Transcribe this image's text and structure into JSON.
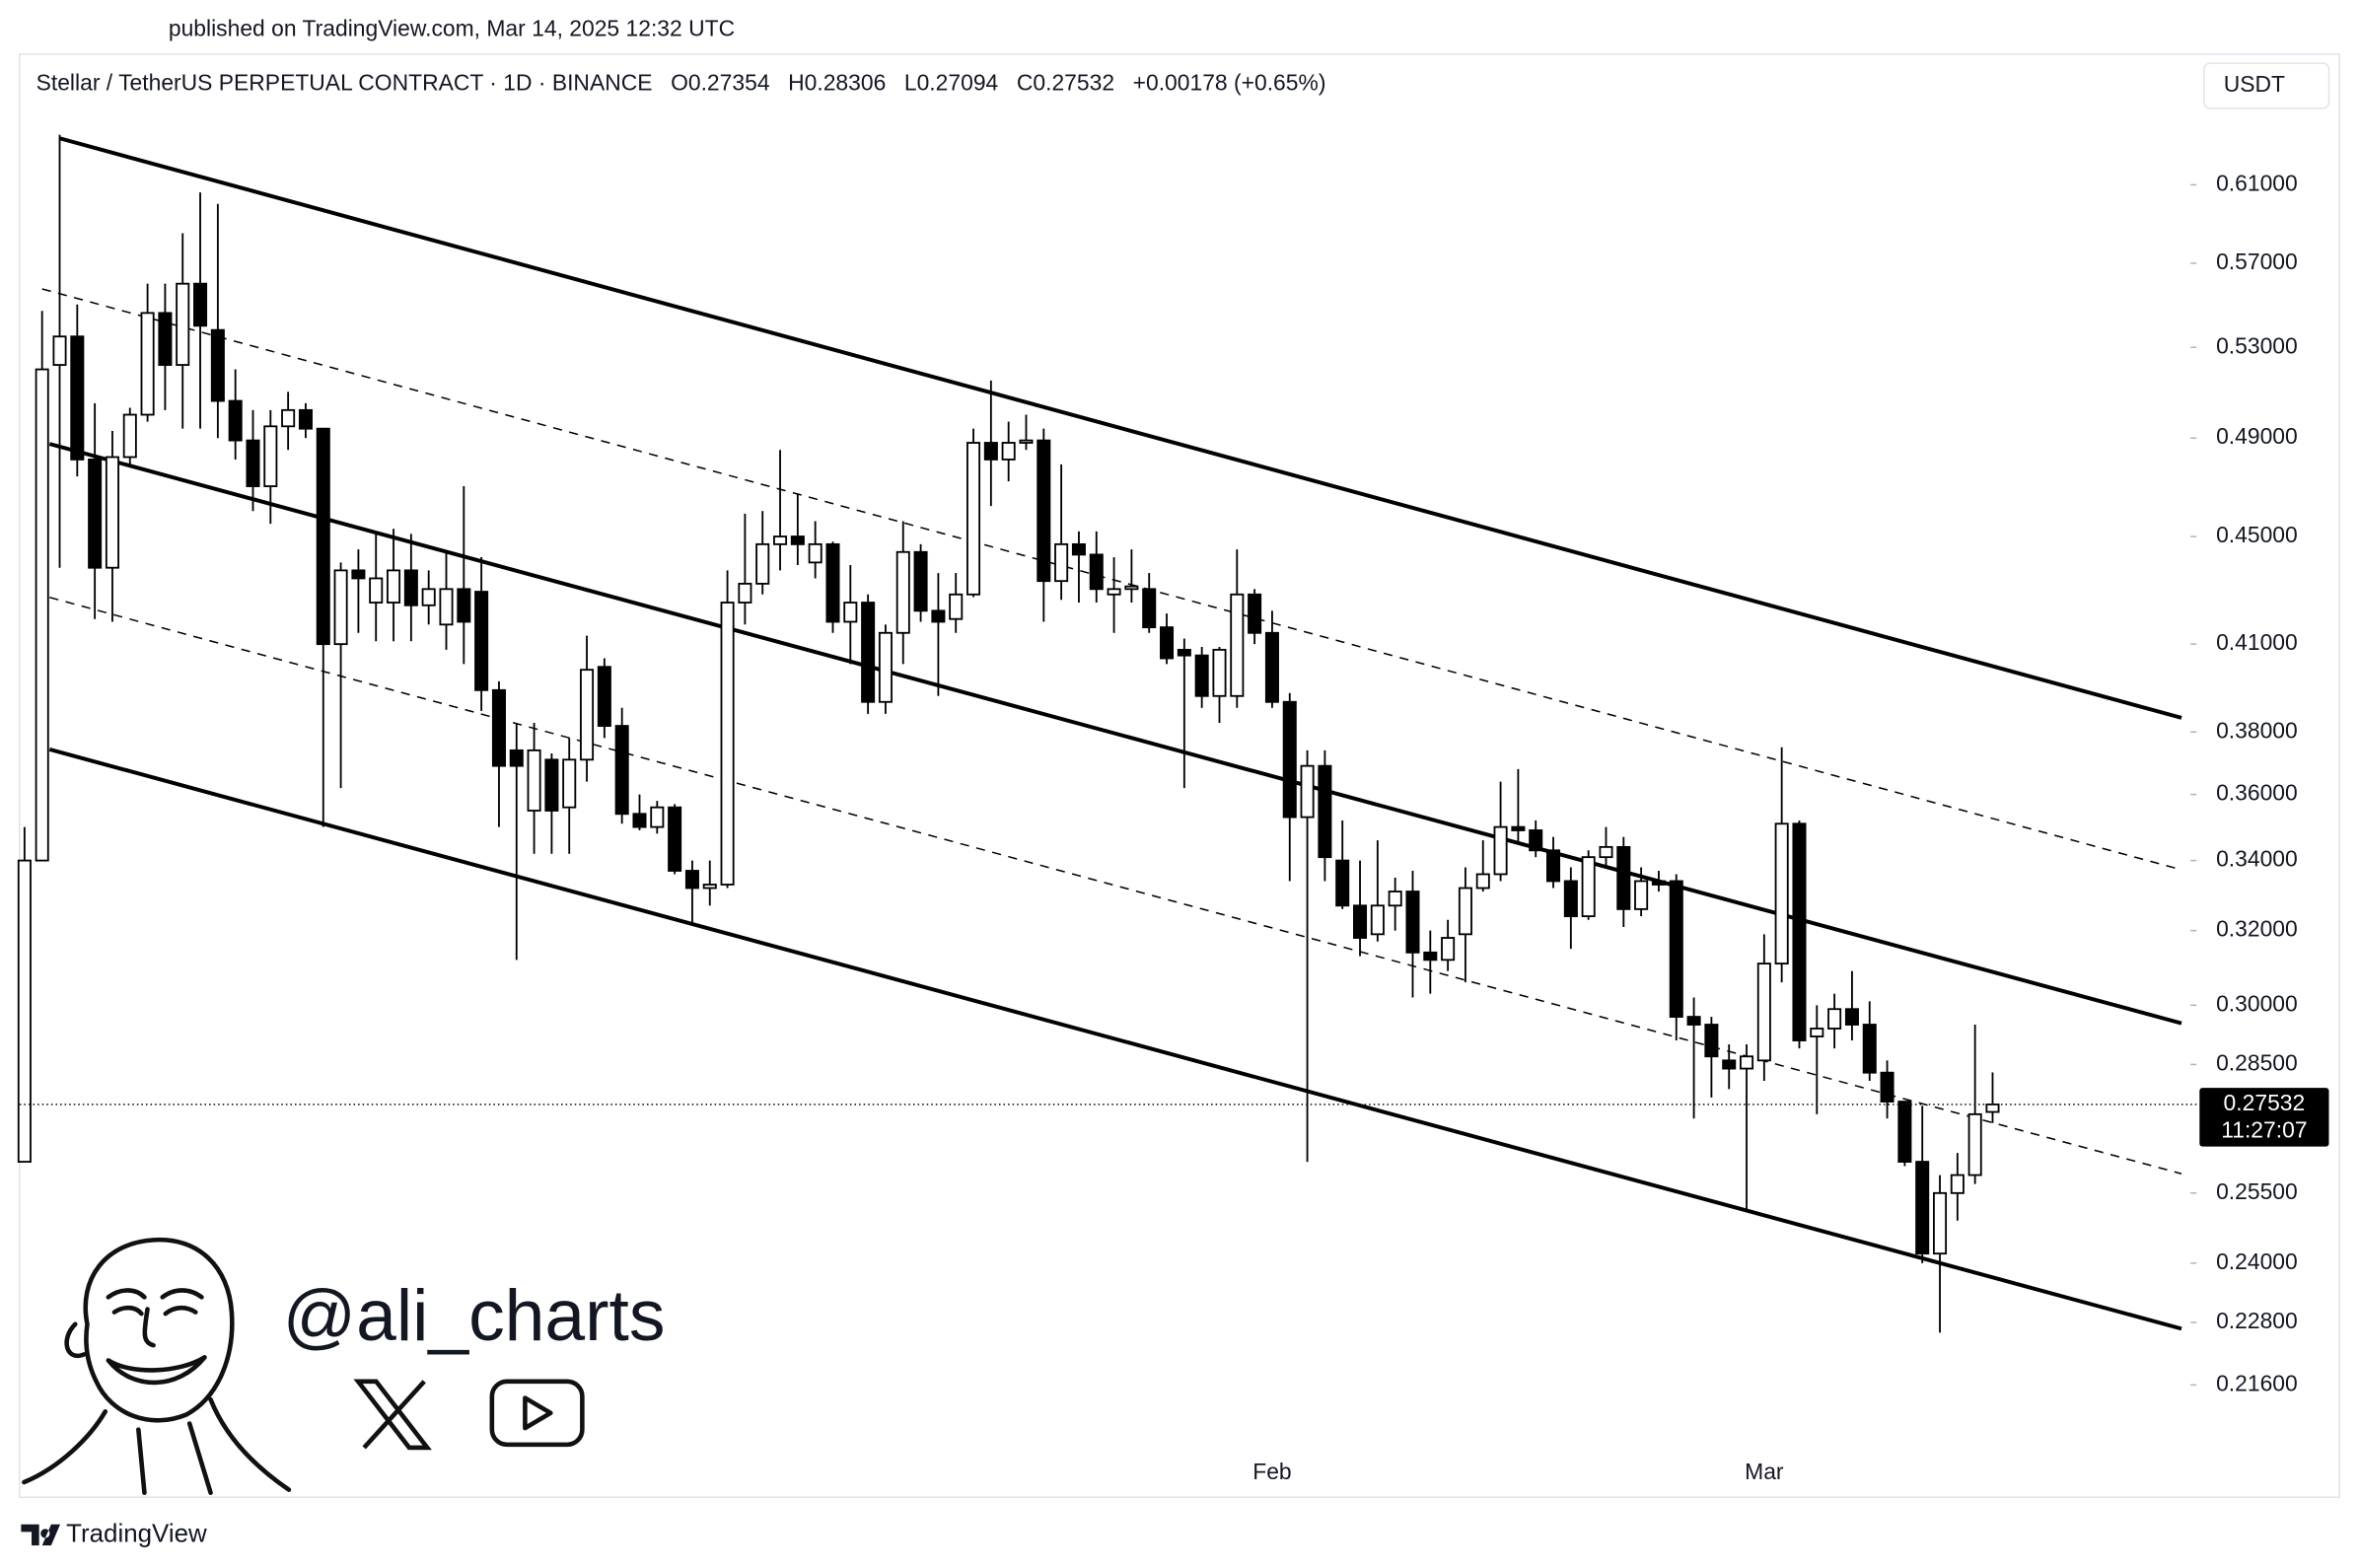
{
  "published": "published on TradingView.com, Mar 14, 2025 12:32 UTC",
  "brand": "TradingView",
  "watermark": "@ali_charts",
  "chart_data": {
    "type": "candlestick",
    "symbol": "Stellar / TetherUS PERPETUAL CONTRACT · 1D · BINANCE",
    "ohlc_text": [
      "O0.27354",
      "H0.28306",
      "L0.27094",
      "C0.27532",
      "+0.00178 (+0.65%)"
    ],
    "currency": "USDT",
    "countdown": "11:27:07",
    "log_scale": true,
    "grid": false,
    "up_color": "#ffffff",
    "down_color": "#000000",
    "outline_color": "#000000",
    "categories": [
      null,
      null,
      null,
      null,
      null,
      null,
      null,
      null,
      null,
      null,
      null,
      null,
      null,
      null,
      null,
      null,
      null,
      null,
      null,
      null,
      null,
      null,
      null,
      null,
      null,
      null,
      null,
      null,
      null,
      null,
      null,
      null,
      null,
      null,
      null,
      null,
      null,
      null,
      null,
      null,
      null,
      null,
      null,
      null,
      null,
      null,
      null,
      null,
      null,
      null,
      null,
      null,
      null,
      null,
      null,
      null,
      null,
      null,
      null,
      null,
      null,
      null,
      null,
      null,
      null,
      null,
      null,
      null,
      null,
      null,
      null,
      "Feb",
      null,
      null,
      null,
      null,
      null,
      null,
      null,
      null,
      null,
      null,
      null,
      null,
      null,
      null,
      null,
      null,
      null,
      null,
      null,
      null,
      null,
      null,
      null,
      null,
      null,
      null,
      null,
      "Mar",
      null,
      null,
      null,
      null,
      null,
      null,
      null,
      null,
      null,
      null,
      null,
      null,
      null
    ],
    "open": [
      0.262,
      0.34,
      0.522,
      0.535,
      0.481,
      0.438,
      0.482,
      0.5,
      0.546,
      0.522,
      0.56,
      0.538,
      0.506,
      0.489,
      0.47,
      0.495,
      0.502,
      0.494,
      0.41,
      0.437,
      0.425,
      0.425,
      0.437,
      0.424,
      0.417,
      0.43,
      0.429,
      0.394,
      0.374,
      0.355,
      0.371,
      0.356,
      0.371,
      0.402,
      0.382,
      0.354,
      0.35,
      0.356,
      0.337,
      0.332,
      0.333,
      0.425,
      0.432,
      0.447,
      0.45,
      0.44,
      0.447,
      0.418,
      0.425,
      0.39,
      0.414,
      0.444,
      0.422,
      0.419,
      0.428,
      0.488,
      0.481,
      0.488,
      0.489,
      0.433,
      0.447,
      0.443,
      0.428,
      0.43,
      0.43,
      0.416,
      0.408,
      0.406,
      0.392,
      0.392,
      0.428,
      0.414,
      0.39,
      0.353,
      0.369,
      0.34,
      0.327,
      0.319,
      0.327,
      0.331,
      0.314,
      0.312,
      0.319,
      0.332,
      0.336,
      0.35,
      0.349,
      0.343,
      0.334,
      0.324,
      0.341,
      0.344,
      0.326,
      0.334,
      0.334,
      0.297,
      0.295,
      0.286,
      0.284,
      0.286,
      0.311,
      0.351,
      0.292,
      0.294,
      0.299,
      0.295,
      0.283,
      0.276,
      0.262,
      0.242,
      0.255,
      0.259,
      0.27354
    ],
    "high": [
      0.35,
      0.547,
      0.637,
      0.55,
      0.505,
      0.493,
      0.503,
      0.56,
      0.56,
      0.585,
      0.606,
      0.6,
      0.52,
      0.502,
      0.502,
      0.51,
      0.505,
      0.494,
      0.44,
      0.445,
      0.451,
      0.453,
      0.451,
      0.437,
      0.444,
      0.47,
      0.442,
      0.397,
      0.383,
      0.383,
      0.373,
      0.378,
      0.413,
      0.405,
      0.388,
      0.36,
      0.358,
      0.357,
      0.34,
      0.34,
      0.437,
      0.459,
      0.46,
      0.485,
      0.467,
      0.456,
      0.448,
      0.439,
      0.428,
      0.417,
      0.456,
      0.447,
      0.436,
      0.436,
      0.494,
      0.515,
      0.497,
      0.5,
      0.494,
      0.479,
      0.452,
      0.452,
      0.442,
      0.445,
      0.436,
      0.421,
      0.412,
      0.409,
      0.409,
      0.445,
      0.43,
      0.422,
      0.393,
      0.374,
      0.374,
      0.352,
      0.34,
      0.346,
      0.335,
      0.337,
      0.32,
      0.323,
      0.338,
      0.346,
      0.364,
      0.368,
      0.352,
      0.347,
      0.338,
      0.343,
      0.35,
      0.347,
      0.338,
      0.337,
      0.336,
      0.302,
      0.297,
      0.29,
      0.29,
      0.319,
      0.375,
      0.352,
      0.3,
      0.303,
      0.309,
      0.301,
      0.286,
      0.276,
      0.275,
      0.259,
      0.264,
      0.295,
      0.28306
    ],
    "low": [
      0.262,
      0.34,
      0.438,
      0.474,
      0.419,
      0.418,
      0.478,
      0.497,
      0.502,
      0.494,
      0.494,
      0.49,
      0.481,
      0.46,
      0.455,
      0.485,
      0.49,
      0.35,
      0.362,
      0.414,
      0.411,
      0.411,
      0.411,
      0.417,
      0.408,
      0.403,
      0.387,
      0.35,
      0.312,
      0.342,
      0.342,
      0.342,
      0.364,
      0.378,
      0.351,
      0.349,
      0.348,
      0.336,
      0.322,
      0.327,
      0.332,
      0.417,
      0.428,
      0.437,
      0.439,
      0.434,
      0.414,
      0.403,
      0.386,
      0.386,
      0.403,
      0.418,
      0.392,
      0.414,
      0.427,
      0.462,
      0.472,
      0.485,
      0.418,
      0.426,
      0.425,
      0.425,
      0.414,
      0.425,
      0.414,
      0.403,
      0.362,
      0.388,
      0.383,
      0.388,
      0.41,
      0.388,
      0.334,
      0.262,
      0.334,
      0.326,
      0.313,
      0.317,
      0.32,
      0.302,
      0.303,
      0.309,
      0.306,
      0.331,
      0.334,
      0.345,
      0.341,
      0.332,
      0.315,
      0.323,
      0.338,
      0.321,
      0.324,
      0.331,
      0.291,
      0.272,
      0.277,
      0.279,
      0.251,
      0.281,
      0.306,
      0.289,
      0.273,
      0.289,
      0.291,
      0.281,
      0.272,
      0.261,
      0.24,
      0.226,
      0.249,
      0.257,
      0.27094
    ],
    "close": [
      0.34,
      0.52,
      0.535,
      0.481,
      0.438,
      0.482,
      0.5,
      0.546,
      0.522,
      0.56,
      0.54,
      0.506,
      0.489,
      0.47,
      0.495,
      0.502,
      0.494,
      0.41,
      0.437,
      0.434,
      0.434,
      0.437,
      0.424,
      0.43,
      0.43,
      0.418,
      0.394,
      0.369,
      0.369,
      0.374,
      0.355,
      0.371,
      0.401,
      0.382,
      0.354,
      0.35,
      0.356,
      0.337,
      0.332,
      0.333,
      0.425,
      0.432,
      0.447,
      0.45,
      0.447,
      0.447,
      0.418,
      0.425,
      0.39,
      0.414,
      0.444,
      0.422,
      0.418,
      0.428,
      0.488,
      0.481,
      0.488,
      0.489,
      0.433,
      0.447,
      0.443,
      0.43,
      0.43,
      0.431,
      0.416,
      0.405,
      0.406,
      0.392,
      0.408,
      0.428,
      0.414,
      0.39,
      0.353,
      0.369,
      0.341,
      0.327,
      0.318,
      0.327,
      0.331,
      0.314,
      0.312,
      0.318,
      0.332,
      0.336,
      0.35,
      0.349,
      0.343,
      0.334,
      0.324,
      0.341,
      0.344,
      0.326,
      0.334,
      0.333,
      0.297,
      0.295,
      0.287,
      0.284,
      0.287,
      0.311,
      0.351,
      0.291,
      0.294,
      0.299,
      0.295,
      0.283,
      0.276,
      0.262,
      0.242,
      0.255,
      0.259,
      0.273,
      0.27532
    ],
    "ylim": [
      0.196,
      0.683
    ],
    "yticks": [
      {
        "value": 0.61,
        "label": "0.61000"
      },
      {
        "value": 0.57,
        "label": "0.57000"
      },
      {
        "value": 0.53,
        "label": "0.53000"
      },
      {
        "value": 0.49,
        "label": "0.49000"
      },
      {
        "value": 0.45,
        "label": "0.45000"
      },
      {
        "value": 0.41,
        "label": "0.41000"
      },
      {
        "value": 0.38,
        "label": "0.38000"
      },
      {
        "value": 0.36,
        "label": "0.36000"
      },
      {
        "value": 0.34,
        "label": "0.34000"
      },
      {
        "value": 0.32,
        "label": "0.32000"
      },
      {
        "value": 0.3,
        "label": "0.30000"
      },
      {
        "value": 0.285,
        "label": "0.28500"
      },
      {
        "value": 0.255,
        "label": "0.25500"
      },
      {
        "value": 0.24,
        "label": "0.24000"
      },
      {
        "value": 0.228,
        "label": "0.22800"
      },
      {
        "value": 0.216,
        "label": "0.21600"
      }
    ]
  }
}
